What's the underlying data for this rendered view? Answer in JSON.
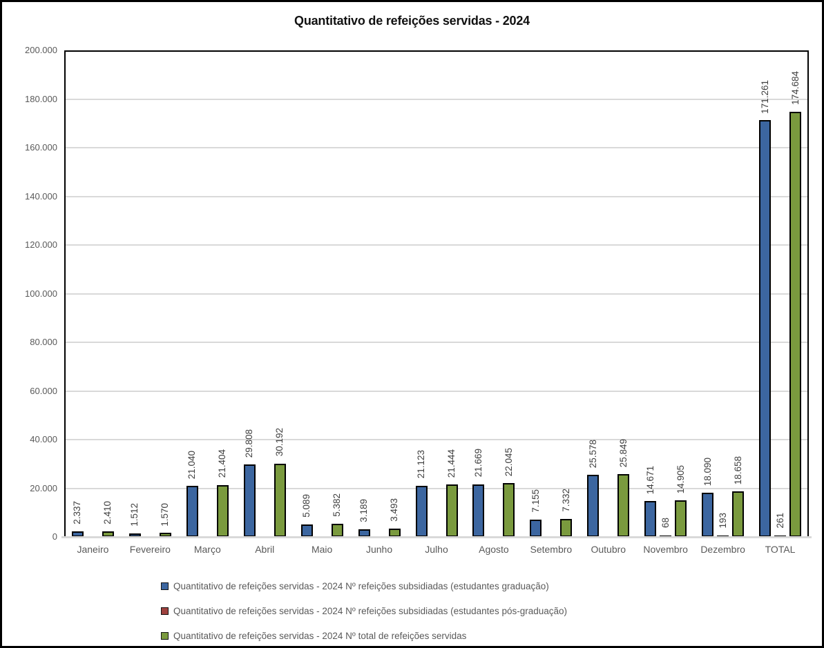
{
  "window": {
    "background": "#ffffff",
    "border_color": "#000000"
  },
  "chart_data": {
    "type": "bar",
    "title": "Quantitativo de refeições servidas - 2024",
    "categories": [
      "Janeiro",
      "Fevereiro",
      "Março",
      "Abril",
      "Maio",
      "Junho",
      "Julho",
      "Agosto",
      "Setembro",
      "Outubro",
      "Novembro",
      "Dezembro",
      "TOTAL"
    ],
    "series": [
      {
        "name": "Quantitativo de refeições servidas - 2024 Nº refeições subsidiadas (estudantes graduação)",
        "key": "graduacao",
        "color": "#3c66a0",
        "values": [
          2337,
          1512,
          21040,
          29808,
          5089,
          3189,
          21123,
          21669,
          7155,
          25578,
          14671,
          18090,
          171261
        ],
        "labels": [
          "2.337",
          "1.512",
          "21.040",
          "29.808",
          "5.089",
          "3.189",
          "21.123",
          "21.669",
          "7.155",
          "25.578",
          "14.671",
          "18.090",
          "171.261"
        ]
      },
      {
        "name": "Quantitativo de refeições servidas - 2024 Nº refeições subsidiadas (estudantes pós-graduação)",
        "key": "pos-graduacao",
        "color": "#9e413e",
        "values": [
          null,
          null,
          null,
          null,
          null,
          null,
          null,
          null,
          null,
          null,
          68,
          193,
          261
        ],
        "labels": [
          null,
          null,
          null,
          null,
          null,
          null,
          null,
          null,
          null,
          null,
          "68",
          "193",
          "261"
        ]
      },
      {
        "name": "Quantitativo de refeições servidas - 2024 Nº total de refeições servidas",
        "key": "total",
        "color": "#7a9a3e",
        "values": [
          2410,
          1570,
          21404,
          30192,
          5382,
          3493,
          21444,
          22045,
          7332,
          25849,
          14905,
          18658,
          174684
        ],
        "labels": [
          "2.410",
          "1.570",
          "21.404",
          "30.192",
          "5.382",
          "3.493",
          "21.444",
          "22.045",
          "7.332",
          "25.849",
          "14.905",
          "18.658",
          "174.684"
        ]
      }
    ],
    "ylim": [
      0,
      200000
    ],
    "ytick_step": 20000,
    "ytick_labels": [
      "0",
      "20.000",
      "40.000",
      "60.000",
      "80.000",
      "100.000",
      "120.000",
      "140.000",
      "160.000",
      "180.000",
      "200.000"
    ],
    "grid": true,
    "legend_position": "bottom-left",
    "gridline_color": "#d9d9d9",
    "axis_label_color": "#595959",
    "data_label_color": "#3f3f3f"
  }
}
